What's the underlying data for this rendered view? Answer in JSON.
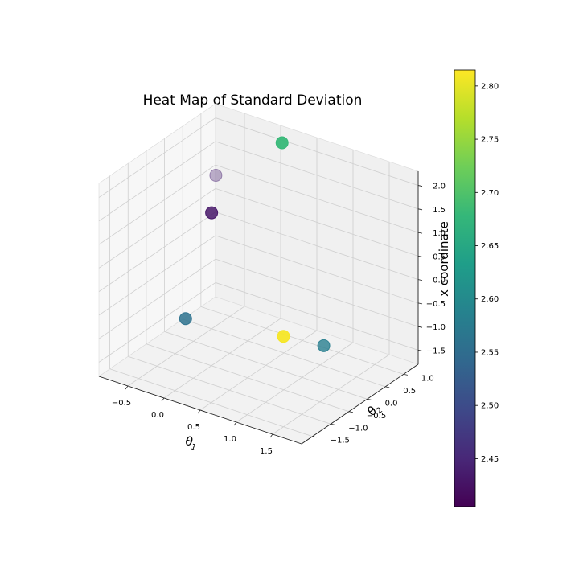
{
  "chart_data": {
    "type": "scatter",
    "projection": "3d",
    "title": "Heat Map of Standard Deviation",
    "xlabel": "θ1",
    "ylabel": "θ2",
    "zlabel": "x coordinate",
    "xlim": [
      -0.9,
      1.9
    ],
    "ylim": [
      -1.8,
      1.4
    ],
    "zlim": [
      -1.8,
      2.3
    ],
    "grid": true,
    "x_ticks": [
      "−0.5",
      "0.0",
      "0.5",
      "1.0",
      "1.5"
    ],
    "y_ticks": [
      "−1.5",
      "−1.0",
      "−0.5",
      "0.0",
      "0.5",
      "1.0"
    ],
    "z_ticks": [
      "−1.5",
      "−1.0",
      "−0.5",
      "0.0",
      "0.5",
      "1.0",
      "1.5",
      "2.0"
    ],
    "colorbar": {
      "label": "",
      "min": 2.405,
      "max": 2.815,
      "ticks": [
        "2.45",
        "2.50",
        "2.55",
        "2.60",
        "2.65",
        "2.70",
        "2.75",
        "2.80"
      ],
      "colormap": "viridis"
    },
    "points": [
      {
        "x": -0.82,
        "y": 1.25,
        "z": 0.9,
        "value": 2.44,
        "alpha": 0.35
      },
      {
        "x": -0.35,
        "y": 0.2,
        "z": 0.9,
        "value": 2.43,
        "alpha": 0.85
      },
      {
        "x": 0.12,
        "y": 1.2,
        "z": 2.1,
        "value": 2.68,
        "alpha": 0.95
      },
      {
        "x": -0.08,
        "y": -1.05,
        "z": -0.55,
        "value": 2.56,
        "alpha": 0.85
      },
      {
        "x": 1.25,
        "y": 0.1,
        "z": -1.05,
        "value": 2.58,
        "alpha": 0.8
      },
      {
        "x": 1.55,
        "y": -1.6,
        "z": 0.2,
        "value": 2.81,
        "alpha": 0.95
      }
    ]
  }
}
